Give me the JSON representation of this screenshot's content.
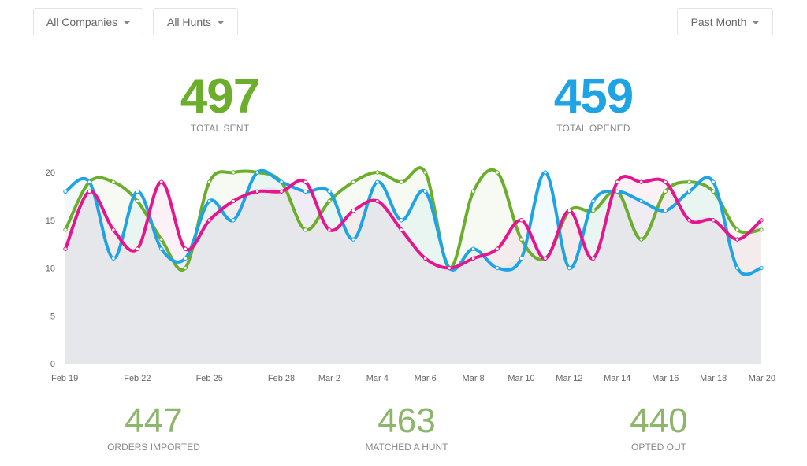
{
  "filters": {
    "companies_label": "All Companies",
    "hunts_label": "All Hunts",
    "period_label": "Past Month"
  },
  "stats": {
    "total_sent": {
      "value": "497",
      "label": "TOTAL SENT"
    },
    "total_opened": {
      "value": "459",
      "label": "TOTAL OPENED"
    },
    "orders_imported": {
      "value": "447",
      "label": "ORDERS IMPORTED"
    },
    "matched_hunt": {
      "value": "463",
      "label": "MATCHED A HUNT"
    },
    "opted_out": {
      "value": "440",
      "label": "OPTED OUT"
    }
  },
  "colors": {
    "green": "#6aae2c",
    "blue": "#1ea4e4",
    "magenta": "#e5168d",
    "area": "#e6e7ea"
  },
  "chart_data": {
    "type": "line",
    "x": [
      "Feb 19",
      "Feb 20",
      "Feb 21",
      "Feb 22",
      "Feb 23",
      "Feb 24",
      "Feb 25",
      "Feb 26",
      "Feb 27",
      "Feb 28",
      "Mar 1",
      "Mar 2",
      "Mar 3",
      "Mar 4",
      "Mar 5",
      "Mar 6",
      "Mar 7",
      "Mar 8",
      "Mar 9",
      "Mar 10",
      "Mar 11",
      "Mar 12",
      "Mar 13",
      "Mar 14",
      "Mar 15",
      "Mar 16",
      "Mar 17",
      "Mar 18",
      "Mar 19",
      "Mar 20"
    ],
    "x_tick_labels": [
      "Feb 19",
      "Feb 22",
      "Feb 25",
      "Feb 28",
      "Mar 2",
      "Mar 4",
      "Mar 6",
      "Mar 8",
      "Mar 10",
      "Mar 12",
      "Mar 14",
      "Mar 16",
      "Mar 18",
      "Mar 20"
    ],
    "x_tick_index": [
      0,
      3,
      6,
      9,
      11,
      13,
      15,
      17,
      19,
      21,
      23,
      25,
      27,
      29
    ],
    "ylim": [
      0,
      20
    ],
    "yticks": [
      0,
      5,
      10,
      15,
      20
    ],
    "series": [
      {
        "name": "Green",
        "color": "#6aae2c",
        "values": [
          14,
          19,
          19,
          17,
          13,
          10,
          19,
          20,
          20,
          19,
          14,
          17,
          19,
          20,
          19,
          20,
          10,
          18,
          20,
          13,
          11,
          16,
          16,
          18,
          13,
          18,
          19,
          18,
          14,
          14
        ]
      },
      {
        "name": "Blue",
        "color": "#1ea4e4",
        "values": [
          18,
          19,
          11,
          18,
          12,
          11,
          17,
          15,
          20,
          19,
          18,
          18,
          13,
          19,
          15,
          18,
          10,
          12,
          10,
          11,
          20,
          10,
          17,
          18,
          17,
          16,
          18,
          19,
          10,
          10
        ]
      },
      {
        "name": "Magenta",
        "color": "#e5168d",
        "values": [
          12,
          18,
          14,
          12,
          19,
          12,
          15,
          17,
          18,
          18,
          19,
          14,
          16,
          17,
          14,
          11,
          10,
          11,
          12,
          15,
          11,
          16,
          11,
          19,
          19,
          19,
          15,
          15,
          13,
          15
        ]
      }
    ]
  }
}
